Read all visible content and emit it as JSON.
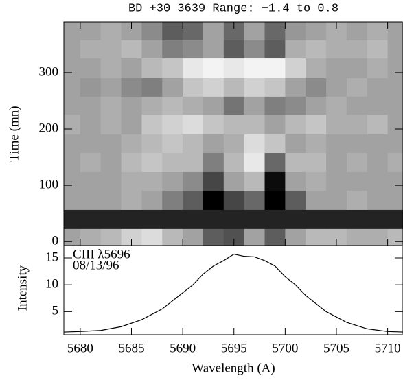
{
  "chart_data": [
    {
      "type": "heatmap",
      "title": "BD +30 3639    Range: −1.4 to 0.8",
      "ylabel": "Time (mn)",
      "xlim": [
        5678.4,
        5711.5
      ],
      "ylim": [
        -7,
        390
      ],
      "yticks": [
        0,
        100,
        200,
        300
      ],
      "zlim": [
        -1.4,
        0.8
      ],
      "x_edges": [
        5678.4,
        5680,
        5682,
        5684,
        5686,
        5688,
        5690,
        5692,
        5694,
        5696,
        5698,
        5700,
        5702,
        5704,
        5706,
        5708,
        5710,
        5711.5
      ],
      "y_edges": [
        -7,
        23,
        57,
        91,
        124,
        158,
        191,
        226,
        258,
        291,
        326,
        358,
        390
      ],
      "z": [
        [
          0,
          0.1,
          0.2,
          0.4,
          0.5,
          0.2,
          0,
          -0.6,
          -0.7,
          0,
          -0.6,
          0,
          0.2,
          0.2,
          0.1,
          0.1,
          0.2
        ],
        [
          -1.1,
          -1.1,
          -1.1,
          -1.1,
          -1.1,
          -1.1,
          -1.1,
          -1.1,
          -1.1,
          -1.1,
          -1.1,
          -1.1,
          -1.1,
          -1.1,
          -1.1,
          -1.1,
          -1.1
        ],
        [
          0,
          0,
          0,
          0.1,
          0,
          -0.3,
          -0.6,
          -1.4,
          -0.8,
          -0.5,
          -1.4,
          -0.6,
          0,
          0,
          0.1,
          0,
          0
        ],
        [
          0,
          0,
          0,
          0.1,
          0.1,
          0,
          -0.2,
          -0.8,
          0,
          0.2,
          -1.3,
          0,
          0.1,
          0,
          0,
          0,
          0
        ],
        [
          0,
          0.1,
          0,
          0.2,
          0.3,
          0.2,
          0.2,
          -0.3,
          0.2,
          0.6,
          -0.5,
          0.2,
          0.2,
          0,
          0.1,
          0,
          0.1
        ],
        [
          0,
          0,
          0,
          0.1,
          0.2,
          0.3,
          0.2,
          0,
          0.1,
          0.5,
          0.3,
          0,
          0.1,
          0,
          0,
          0,
          0
        ],
        [
          0.1,
          0,
          0.1,
          0,
          0.3,
          0.4,
          0.5,
          0.3,
          0.2,
          0.2,
          0,
          0.2,
          0.3,
          0.1,
          0.1,
          0.2,
          0
        ],
        [
          0,
          0,
          0.1,
          0,
          0.1,
          0.2,
          0.1,
          0,
          -0.4,
          0,
          -0.3,
          -0.2,
          0,
          0.1,
          0,
          0,
          0
        ],
        [
          0,
          -0.1,
          0,
          -0.2,
          -0.3,
          0,
          0.3,
          0.4,
          0.2,
          0.4,
          0.3,
          0,
          -0.2,
          0,
          0.1,
          0,
          0
        ],
        [
          0,
          0,
          0.1,
          0,
          0.2,
          0.3,
          0.6,
          0.7,
          0.6,
          0.7,
          0.7,
          0.4,
          0.1,
          0,
          0,
          0.1,
          0
        ],
        [
          0,
          0.1,
          0.1,
          0.2,
          0,
          -0.3,
          -0.2,
          0,
          -0.6,
          -0.2,
          -0.6,
          0.1,
          0.2,
          0.1,
          0.1,
          0.2,
          0
        ],
        [
          0,
          0,
          0.1,
          0,
          -0.2,
          -0.6,
          -0.5,
          0,
          -0.5,
          0,
          -0.5,
          -0.1,
          0,
          0.1,
          0,
          0.1,
          0
        ]
      ]
    },
    {
      "type": "line",
      "xlabel": "Wavelength (A)",
      "ylabel": "Intensity",
      "annotations": [
        "CIII λ5696",
        "08/13/96"
      ],
      "color": "#000000",
      "xlim": [
        5678.4,
        5711.5
      ],
      "ylim": [
        0.7,
        17.3
      ],
      "xticks": [
        5680,
        5685,
        5690,
        5695,
        5700,
        5705,
        5710
      ],
      "yticks": [
        5,
        10,
        15
      ],
      "x": [
        5678.4,
        5680,
        5682,
        5684,
        5686,
        5688,
        5690,
        5691,
        5692,
        5693,
        5694,
        5695,
        5696,
        5697,
        5698,
        5699,
        5700,
        5701,
        5702,
        5704,
        5706,
        5708,
        5710,
        5711.5
      ],
      "y": [
        1.2,
        1.3,
        1.5,
        2.2,
        3.5,
        5.5,
        8.5,
        10,
        12,
        13.5,
        14.5,
        15.7,
        15.3,
        15.2,
        14.5,
        13.5,
        11.5,
        10,
        8,
        5,
        3,
        1.8,
        1.3,
        1.2
      ]
    }
  ]
}
